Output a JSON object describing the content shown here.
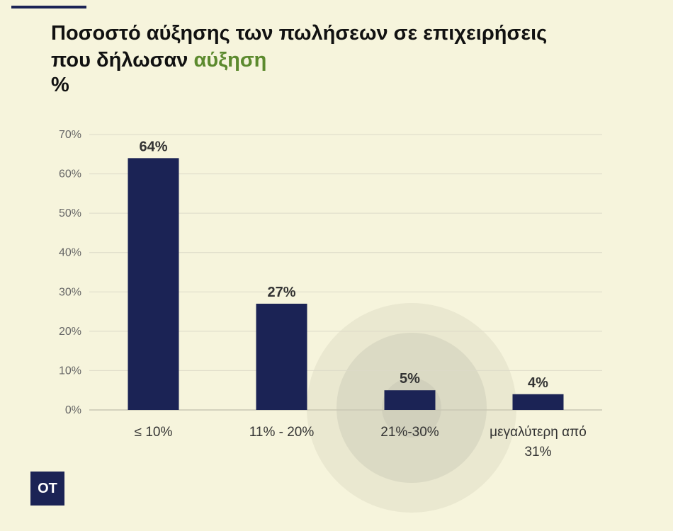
{
  "header": {
    "title_line1": "Ποσοστό αύξησης των πωλήσεων σε επιχειρήσεις",
    "title_line2_prefix": "που δήλωσαν ",
    "title_line2_accent": "αύξηση",
    "unit": "%"
  },
  "logo": {
    "text": "OT"
  },
  "colors": {
    "bar": "#1b2355",
    "accent": "#5c8a2e",
    "background": "#f6f4dc",
    "grid": "#dcdac8"
  },
  "chart_data": {
    "type": "bar",
    "categories": [
      "≤ 10%",
      "11% - 20%",
      "21%-30%",
      "μεγαλύτερη από 31%"
    ],
    "category_lines": [
      [
        "≤ 10%"
      ],
      [
        "11% - 20%"
      ],
      [
        "21%-30%"
      ],
      [
        "μεγαλύτερη από",
        "31%"
      ]
    ],
    "values": [
      64,
      27,
      5,
      4
    ],
    "value_labels": [
      "64%",
      "27%",
      "5%",
      "4%"
    ],
    "yticks": [
      0,
      10,
      20,
      30,
      40,
      50,
      60,
      70
    ],
    "ytick_labels": [
      "0%",
      "10%",
      "20%",
      "30%",
      "40%",
      "50%",
      "60%",
      "70%"
    ],
    "ylim": [
      0,
      70
    ],
    "grid": true,
    "title": "",
    "xlabel": "",
    "ylabel": ""
  }
}
